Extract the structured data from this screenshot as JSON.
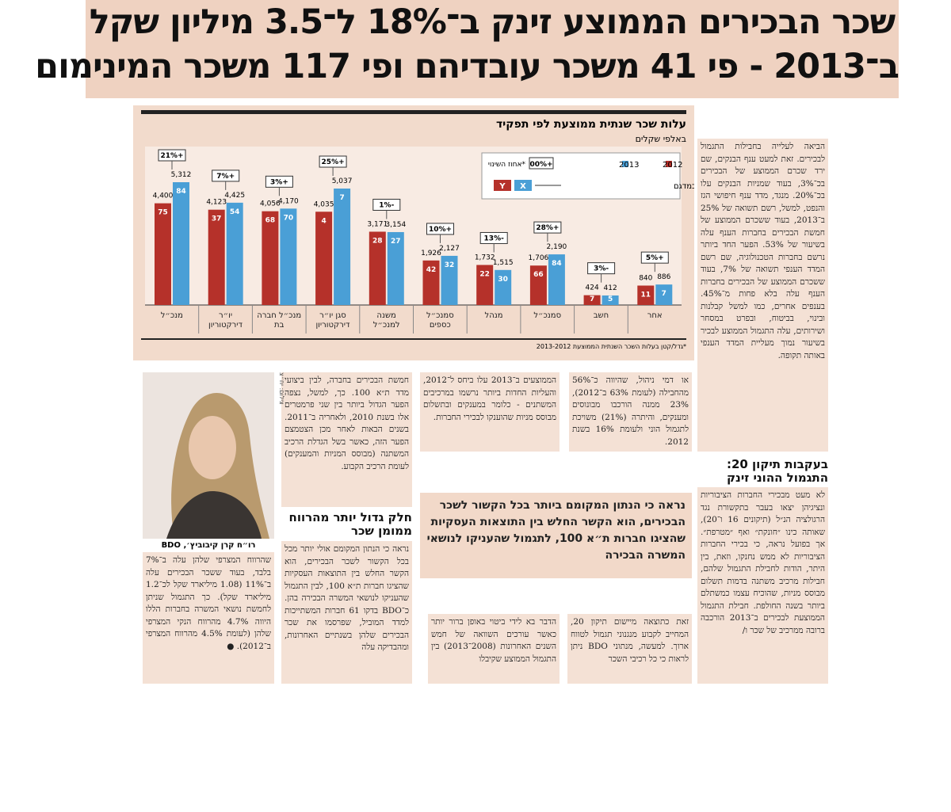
{
  "headline": {
    "line1": "שכר הבכירים הממוצע זינק ב־18% ל־3.5 מיליון שקל",
    "line2": "ב־2013 - פי 41 משכר עובדיהם ופי 117 משכר המינימום"
  },
  "chart_data": {
    "type": "bar",
    "title": "עלות שכר שנתית ממוצעת לפי תפקיד",
    "subtitle": "באלפי שקלים",
    "categories": [
      "מנכ״ל",
      "יו״ר דירקטוריון",
      "מנכ״ל חברה בת",
      "סגן יו״ר דירקטוריון",
      "משנה למנכ״ל",
      "סמנכ״ל כספים",
      "מנהל",
      "סמנכ״ל",
      "חשב",
      "אחר"
    ],
    "series": [
      {
        "name": "2012",
        "color": "#b5312a",
        "values": [
          4400,
          4123,
          4056,
          4035,
          3171,
          1926,
          1732,
          1706,
          424,
          840
        ],
        "value_labels": [
          "4,400",
          "4,123",
          "4,056",
          "4,035",
          "3,171",
          "1,926",
          "1,732",
          "1,706",
          "424",
          "840"
        ],
        "counts": [
          75,
          37,
          68,
          4,
          28,
          42,
          22,
          66,
          7,
          11
        ]
      },
      {
        "name": "2013",
        "color": "#4a9fd6",
        "values": [
          5312,
          4425,
          4170,
          5037,
          3154,
          2127,
          1515,
          2190,
          412,
          886
        ],
        "value_labels": [
          "5,312",
          "4,425",
          "4,170",
          "5,037",
          "3,154",
          "2,127",
          "1,515",
          "2,190",
          "412",
          "886"
        ],
        "counts": [
          84,
          54,
          70,
          7,
          27,
          32,
          30,
          84,
          5,
          7
        ]
      }
    ],
    "change": {
      "values": [
        21,
        7,
        3,
        25,
        -1,
        10,
        -13,
        28,
        -3,
        5
      ],
      "value_labels": [
        "+21%",
        "+7%",
        "+3%",
        "+25%",
        "-1%",
        "+10%",
        "-13%",
        "+28%",
        "-3%",
        "+5%"
      ]
    },
    "legend": {
      "change_label": "אחוז השינוי*",
      "change_sample": "+00%",
      "count_label": "מספר בעלי תפקיד במדגם",
      "count_sample_2012": "Y",
      "count_sample_2013": "X"
    },
    "footnote": "*גדל/קטן בעלות השכר השנתית הממוצעת 2013-2012"
  },
  "article": {
    "right_top": "הביאה לעלייה בחבילות התגמול לבכירים. זאת למעט ענף הבנקים, שם ירד שכרם הממוצע של הבכירים בכ־3%, בעוד שמניות הבנקים עלו בכ־20%. מנגד, מדד ענף חיפושי הגז והנפט, למשל, רשם תשואה של 25% ב־2013, בעוד ששכרם הממוצע של חמשת הבכירים בחברות הענף עלה בשיעור של 53%. הפער החד ביותר נרשם בחברות הטכנולוגיה, שם רשם המדד הענפי תשואה של 7%, בעוד ששכרם הממוצע של הבכירים בחברות הענף עלה בלא פחות מ־45%. בענפים אחרים, כמו למשל קבלנות ובינוי, בביטוח, ובפרט במסחר ושירותים, עלה התגמול הממוצע לבכיר בשיעור נמוך מעליית המדד הענפי באותה תקופה.",
    "right_subhead": "בעקבות תיקון 20: התגמול ההוני זינק",
    "right_bottom": "לא מעט מבכירי החברות הציבוריות ונציגיהן יצאו בעבר בתקשורת נגד הרגולציה הנ״ל (תיקונים 16 ו־20), שאותה כינו ״חונקת״ ואף ״מטרפת״. אך בפועל נראה, כי בכירי החברות הציבוריות לא ממש נחנקו, וזאת, בין היתר, הודות לחבילת התגמול שלהם, חבילות מרכיב משתנה בדמות תשלום מבוסס מניות, שהוכיח עצמו כמשתלם ביותר בשנה החולפת. חבילת התגמול הממוצעת לבכירים ב־2013 הורכבה ברובה ממרכיב של שכר ו/",
    "col2_top": "או דמי ניהול, שהיווה כ־56% מהחבילה (לעומת 63% ב־2012), 23% ממנה הורכבו מבונוסים ומענקים, והיתרה (21%) משויכת לתגמול הוני ולעומת 16% בשנת 2012.",
    "col3_top": "הממוצעים ב־2013 עלו ביחס ל־2012, והעליות החדות ביותר נרשמו במרכיבים המשתנים - כלומר במענקים ובתשלום מבוסס מניות שהוענקו לבכירי החברות.",
    "col4_top": "חמשת הבכירים בחברה, לבין ביצועי מדד ת״א 100. כך, למשל, נצפה הפער הגדול ביותר בין שני פרמטרים אלו בשנת 2010, ולאחריה ב־2011. בשנים הבאות לאחר מכן הצטמצם הפער הזה, כאשר בשל הגדלת הרכיב המשתנה (מבוסס המניות והמענקים) לעומת הרכיב הקבוע.",
    "col4_subhead": "חלק גדול יותר מהרווח ממומן שכר",
    "col4_bottom": "נראה כי הנתון המקומם אולי יותר מכל בכל הקשור לשכר הבכירים, הוא הקשר החלש בין התוצאות העסקיות שהציגו חברות ת״א 100, לבין התגמול שהעניקו לנושאי המשרה הבכירה בהן. כ־BDO בדקו 61 חברות המשתייכות למדד המוביל, שפרסמו את שכר הבכירים שלהן בשנתיים האחרונות, ומהבדיקה עלה",
    "quote": "נראה כי הנתון המקומם ביותר בכל הקשור לשכר הבכירים, הוא הקשר החלש בין התוצאות העסקיות שהציגו חברות ת״א 100, לתגמול שהעניקו לנושאי המשרה הבכירה",
    "photo_credit": "צילום: יח״צ",
    "photo_caption": "רו״ח קרן קיבוביץ׳, BDO",
    "col5_bottom": "שהרווח המצרפי שלהן עלה ב־7% בלבד, בעוד ששכר הבכירים עלה ב־11% (1.08 מיליארד שקל לכ־1.2 מיליארד שקל). כך התגמול שניתן לחמשת נושאי המשרה בחברות הללו היווה 4.7% מהרווח הנקי המצרפי שלהן (לעומת 4.5% מהרווח המצרפי ב־2012). ●",
    "col3_bottom": "הדבר בא לידי ביטוי באופן ברור יותר כאשר עורכים השוואה של חמש השנים האחרונות (2008־2013) בין התגמול הממוצע שקיבלו",
    "col2_bottom": "זאת כתוצאה מיישום תיקון 20, המחייב לקבוע מנגנוני תגמול לטווח ארוך. למעשה, מנתוני BDO ניתן לראות כי כל רכיבי השכר"
  }
}
